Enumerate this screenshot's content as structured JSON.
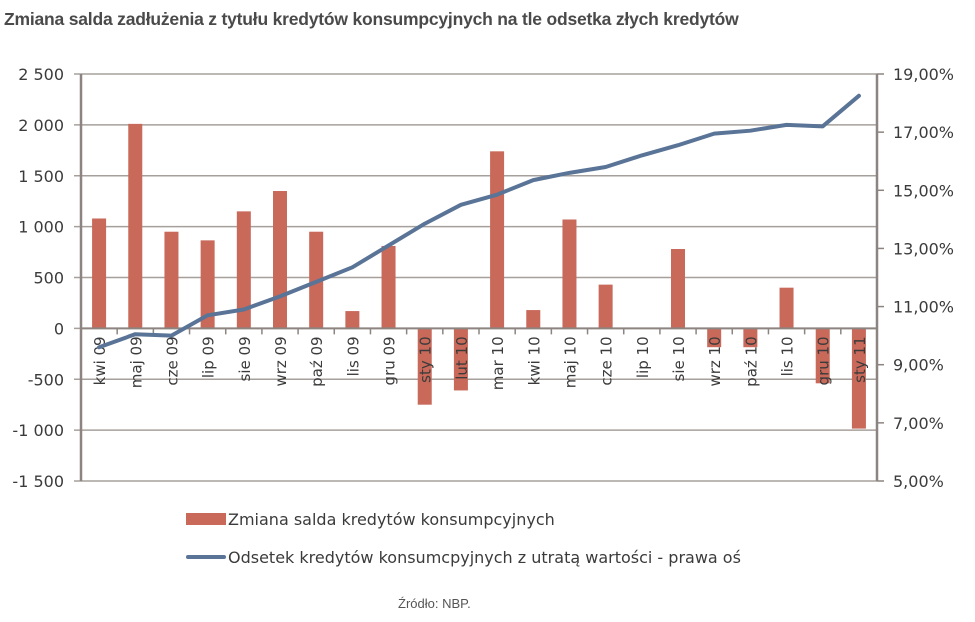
{
  "title": "Zmiana salda zadłużenia z tytułu kredytów konsumpcyjnych na tle odsetka złych kredytów",
  "source": "Źródło: NBP.",
  "colors": {
    "bar": "#c8695a",
    "line": "#5a7497",
    "grid": "#a6a09c",
    "axis": "#8c8480",
    "text": "#3b3b3b"
  },
  "legend": {
    "bar_label": "Zmiana salda kredytów konsumpcyjnych",
    "line_label": "Odsetek kredytów konsumcpyjnych z utratą wartości - prawa oś"
  },
  "chart_data": {
    "type": "bar+line",
    "title": "Zmiana salda zadłużenia z tytułu kredytów konsumpcyjnych na tle odsetka złych kredytów",
    "categories": [
      "kwi 09",
      "maj 09",
      "cze 09",
      "lip 09",
      "sie 09",
      "wrz 09",
      "paź 09",
      "lis 09",
      "gru 09",
      "sty 10",
      "lut 10",
      "mar 10",
      "kwi 10",
      "maj 10",
      "cze 10",
      "lip 10",
      "sie 10",
      "wrz 10",
      "paź 10",
      "lis 10",
      "gru 10",
      "sty 11"
    ],
    "series": [
      {
        "name": "Zmiana salda kredytów konsumpcyjnych",
        "type": "bar",
        "axis": "left",
        "values": [
          1080,
          2010,
          950,
          865,
          1150,
          1350,
          950,
          170,
          810,
          -750,
          -610,
          1740,
          180,
          1070,
          430,
          0,
          780,
          -185,
          -185,
          400,
          -540,
          -985
        ]
      },
      {
        "name": "Odsetek kredytów konsumcpyjnych z utratą wartości - prawa oś",
        "type": "line",
        "axis": "right",
        "values": [
          9.6,
          10.05,
          10.0,
          10.7,
          10.9,
          11.35,
          11.85,
          12.35,
          13.1,
          13.85,
          14.5,
          14.85,
          15.35,
          15.6,
          15.8,
          16.2,
          16.55,
          16.95,
          17.05,
          17.25,
          17.2,
          18.25
        ]
      }
    ],
    "left_axis": {
      "ylim": [
        -1500,
        2500
      ],
      "ticks": [
        2500,
        2000,
        1500,
        1000,
        500,
        0,
        -500,
        -1000,
        -1500
      ],
      "tick_labels": [
        "2 500",
        "2 000",
        "1 500",
        "1 000",
        "500",
        "0",
        "-500",
        "-1 000",
        "-1 500"
      ]
    },
    "right_axis": {
      "ylim": [
        5,
        19
      ],
      "ticks": [
        19,
        17,
        15,
        13,
        11,
        9,
        7,
        5
      ],
      "tick_labels": [
        "19,00%",
        "17,00%",
        "15,00%",
        "13,00%",
        "11,00%",
        "9,00%",
        "7,00%",
        "5,00%"
      ]
    },
    "xlabel": "",
    "ylabel": "",
    "grid": true,
    "legend_position": "bottom"
  }
}
